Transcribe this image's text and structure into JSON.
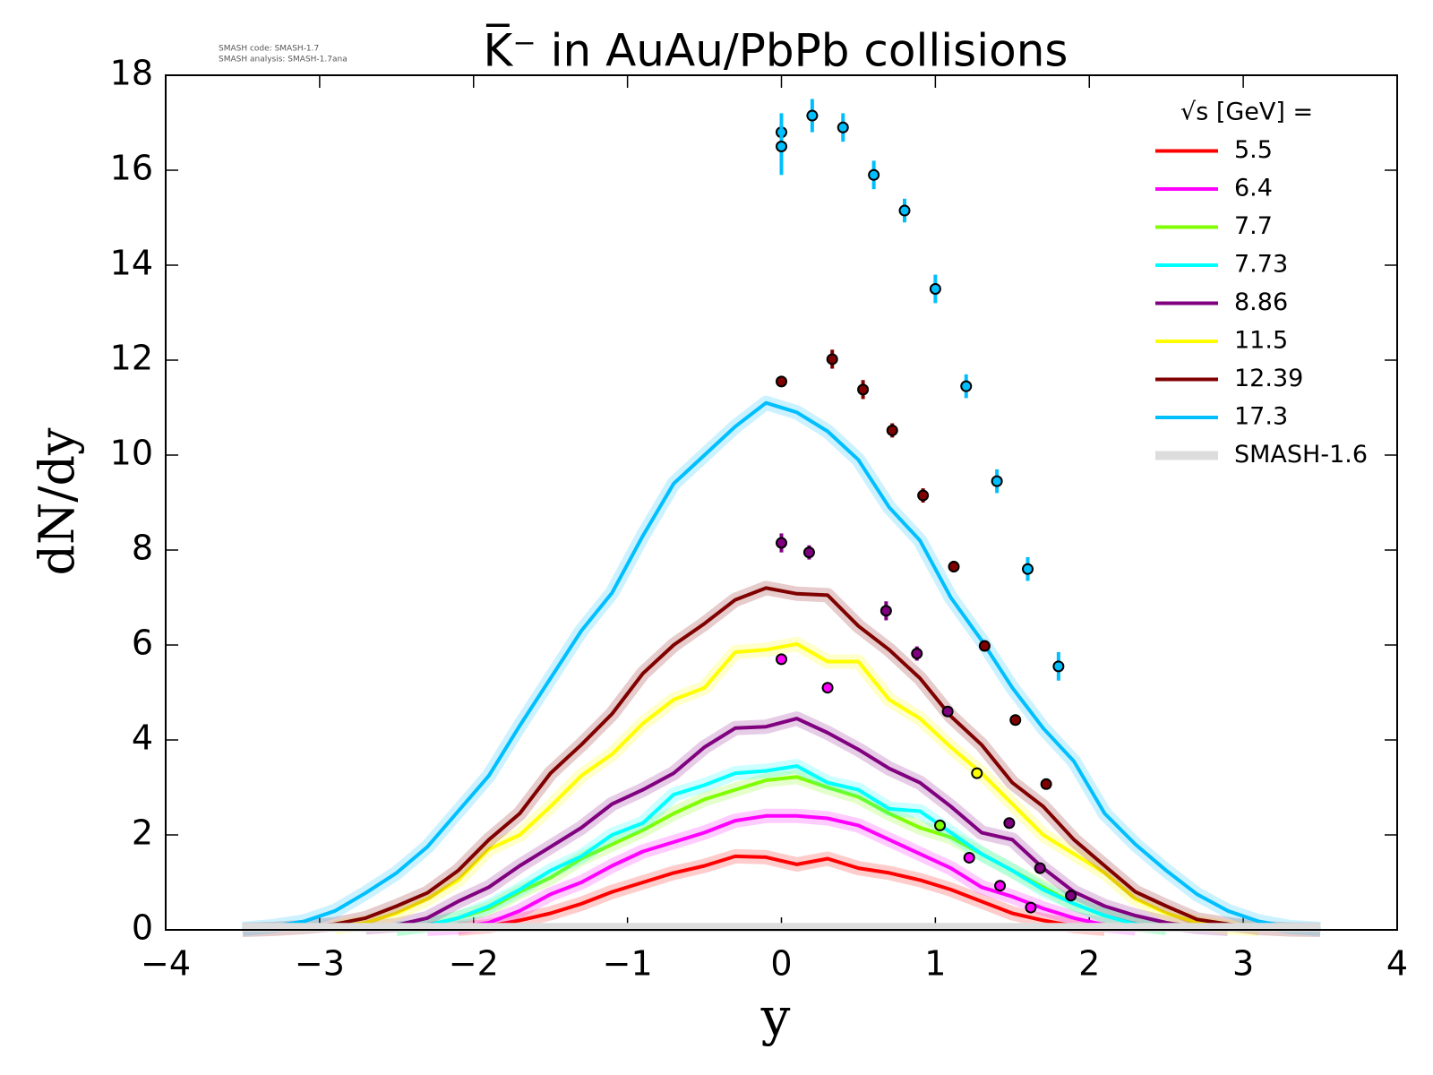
{
  "chart_data": {
    "type": "line",
    "title": "K̅⁻ in AuAu/PbPb collisions",
    "watermark": [
      "SMASH code:      SMASH-1.7",
      "SMASH analysis: SMASH-1.7ana"
    ],
    "x_label": "y",
    "y_label": "dN/dy",
    "legend_title": "√s  [GeV] =",
    "legend": "upper right",
    "xlim": [
      -4,
      4
    ],
    "ylim": [
      0,
      18
    ],
    "xticks": [
      {
        "value": -4,
        "label": "−4"
      },
      {
        "value": -3,
        "label": "−3"
      },
      {
        "value": -2,
        "label": "−2"
      },
      {
        "value": -1,
        "label": "−1"
      },
      0,
      1,
      2,
      3,
      4
    ],
    "yticks": [
      0,
      2,
      4,
      6,
      8,
      10,
      12,
      14,
      16,
      18
    ],
    "x": [
      -3.5,
      -3.3,
      -3.1,
      -2.9,
      -2.7,
      -2.5,
      -2.3,
      -2.1,
      -1.9,
      -1.7,
      -1.5,
      -1.3,
      -1.1,
      -0.9,
      -0.7,
      -0.5,
      -0.3,
      -0.1,
      0.1,
      0.3,
      0.5,
      0.7,
      0.9,
      1.1,
      1.3,
      1.5,
      1.7,
      1.9,
      2.1,
      2.3,
      2.5,
      2.7,
      2.9,
      3.1,
      3.3,
      3.5
    ],
    "series": [
      {
        "name": "5.5",
        "color": "#ff0000",
        "values": [
          null,
          null,
          null,
          null,
          null,
          null,
          null,
          0.02,
          0.08,
          0.2,
          0.35,
          0.55,
          0.8,
          1.0,
          1.2,
          1.35,
          1.55,
          1.53,
          1.38,
          1.5,
          1.3,
          1.2,
          1.05,
          0.85,
          0.6,
          0.35,
          0.2,
          0.08,
          0.02,
          null,
          null,
          null,
          null,
          null,
          null,
          null
        ]
      },
      {
        "name": "6.4",
        "color": "#ff00ff",
        "values": [
          null,
          null,
          null,
          null,
          null,
          null,
          0.02,
          0.05,
          0.15,
          0.4,
          0.75,
          1.0,
          1.35,
          1.65,
          1.85,
          2.05,
          2.3,
          2.4,
          2.4,
          2.35,
          2.2,
          1.9,
          1.6,
          1.3,
          0.9,
          0.7,
          0.45,
          0.25,
          0.1,
          0.03,
          null,
          null,
          null,
          null,
          null,
          null
        ],
        "points": {
          "x": [
            0,
            0.3,
            1.22,
            1.42,
            1.62
          ],
          "y": [
            5.7,
            5.1,
            1.52,
            0.93,
            0.47
          ],
          "err": [
            0.05,
            0.05,
            0.05,
            0.05,
            0.05
          ]
        }
      },
      {
        "name": "7.7",
        "color": "#7fff00",
        "values": [
          null,
          null,
          null,
          null,
          null,
          0.02,
          0.1,
          0.25,
          0.45,
          0.8,
          1.1,
          1.5,
          1.8,
          2.1,
          2.45,
          2.75,
          2.95,
          3.15,
          3.22,
          3.0,
          2.8,
          2.45,
          2.15,
          1.95,
          1.6,
          1.25,
          0.9,
          0.55,
          0.3,
          0.12,
          0.04,
          null,
          null,
          null,
          null,
          null
        ],
        "points": {
          "x": [
            1.03
          ],
          "y": [
            2.2
          ],
          "err": [
            0.05
          ]
        }
      },
      {
        "name": "7.73",
        "color": "#00ffff",
        "values": [
          null,
          null,
          null,
          null,
          null,
          0.02,
          0.1,
          0.25,
          0.5,
          0.85,
          1.25,
          1.55,
          2.0,
          2.25,
          2.85,
          3.05,
          3.3,
          3.35,
          3.45,
          3.1,
          2.95,
          2.55,
          2.5,
          2.05,
          1.6,
          1.25,
          0.85,
          0.55,
          0.3,
          0.12,
          0.04,
          null,
          null,
          null,
          null,
          null
        ]
      },
      {
        "name": "8.86",
        "color": "#800080",
        "values": [
          null,
          null,
          null,
          null,
          0.05,
          0.1,
          0.25,
          0.6,
          0.9,
          1.35,
          1.75,
          2.15,
          2.65,
          2.95,
          3.3,
          3.85,
          4.25,
          4.28,
          4.45,
          4.15,
          3.8,
          3.4,
          3.1,
          2.6,
          2.05,
          1.9,
          1.3,
          0.8,
          0.5,
          0.3,
          0.15,
          0.06,
          0.02,
          null,
          null,
          null
        ],
        "points": {
          "x": [
            0,
            0.18,
            0.68,
            0.88,
            1.08,
            1.48,
            1.68,
            1.88
          ],
          "y": [
            8.15,
            7.95,
            6.72,
            5.82,
            4.6,
            2.25,
            1.3,
            0.72
          ],
          "err": [
            0.2,
            0.15,
            0.2,
            0.15,
            0.1,
            0.1,
            0.1,
            0.1
          ]
        }
      },
      {
        "name": "11.5",
        "color": "#ffff00",
        "values": [
          null,
          null,
          null,
          0.05,
          0.15,
          0.35,
          0.65,
          1.05,
          1.7,
          2.0,
          2.6,
          3.25,
          3.7,
          4.35,
          4.85,
          5.1,
          5.85,
          5.9,
          6.02,
          5.65,
          5.65,
          4.85,
          4.45,
          3.85,
          3.3,
          2.65,
          2.0,
          1.6,
          1.2,
          0.65,
          0.35,
          0.15,
          0.05,
          0.01,
          null,
          null
        ],
        "points": {
          "x": [
            1.27
          ],
          "y": [
            3.3
          ],
          "err": [
            0.05
          ]
        }
      },
      {
        "name": "12.39",
        "color": "#800000",
        "values": [
          0,
          0.02,
          0.06,
          0.12,
          0.25,
          0.5,
          0.78,
          1.25,
          1.9,
          2.45,
          3.3,
          3.9,
          4.55,
          5.4,
          6.0,
          6.45,
          6.95,
          7.2,
          7.08,
          7.05,
          6.4,
          5.9,
          5.3,
          4.5,
          3.9,
          3.1,
          2.6,
          1.9,
          1.35,
          0.8,
          0.5,
          0.22,
          0.12,
          0.04,
          0.01,
          0
        ],
        "points": {
          "x": [
            0,
            0.33,
            0.53,
            0.72,
            0.92,
            1.12,
            1.32,
            1.52,
            1.72
          ],
          "y": [
            11.55,
            12.02,
            11.38,
            10.52,
            9.15,
            7.65,
            5.98,
            4.42,
            3.07
          ],
          "err": [
            0.1,
            0.2,
            0.2,
            0.15,
            0.15,
            0.12,
            0.1,
            0.1,
            0.1
          ]
        }
      },
      {
        "name": "17.3",
        "color": "#00bfff",
        "values": [
          0.02,
          0.08,
          0.18,
          0.4,
          0.78,
          1.2,
          1.75,
          2.5,
          3.25,
          4.3,
          5.3,
          6.3,
          7.1,
          8.3,
          9.4,
          10.0,
          10.6,
          11.1,
          10.9,
          10.5,
          9.9,
          8.9,
          8.2,
          7.0,
          6.1,
          5.1,
          4.25,
          3.55,
          2.45,
          1.8,
          1.25,
          0.75,
          0.4,
          0.18,
          0.06,
          0.02
        ],
        "points": {
          "x": [
            0,
            0,
            0.2,
            0.4,
            0.6,
            0.8,
            1.0,
            1.2,
            1.4,
            1.6,
            1.8
          ],
          "y": [
            16.8,
            16.5,
            17.15,
            16.9,
            15.9,
            15.15,
            13.5,
            11.45,
            9.45,
            7.6,
            5.55
          ],
          "err": [
            0.4,
            0.6,
            0.35,
            0.3,
            0.3,
            0.25,
            0.3,
            0.25,
            0.25,
            0.25,
            0.3
          ]
        }
      },
      {
        "name": "SMASH-1.6",
        "color": "#dddddd",
        "band": true,
        "values": [
          0.05,
          0.05,
          0.05,
          0.05,
          0.05,
          0.05,
          0.05,
          0.05,
          0.05,
          0.05,
          0.05,
          0.05,
          0.05,
          0.05,
          0.05,
          0.05,
          0.05,
          0.05,
          0.05,
          0.05,
          0.05,
          0.05,
          0.05,
          0.05,
          0.05,
          0.05,
          0.05,
          0.05,
          0.05,
          0.05,
          0.05,
          0.05,
          0.05,
          0.05,
          0.05,
          0.05
        ]
      }
    ]
  }
}
